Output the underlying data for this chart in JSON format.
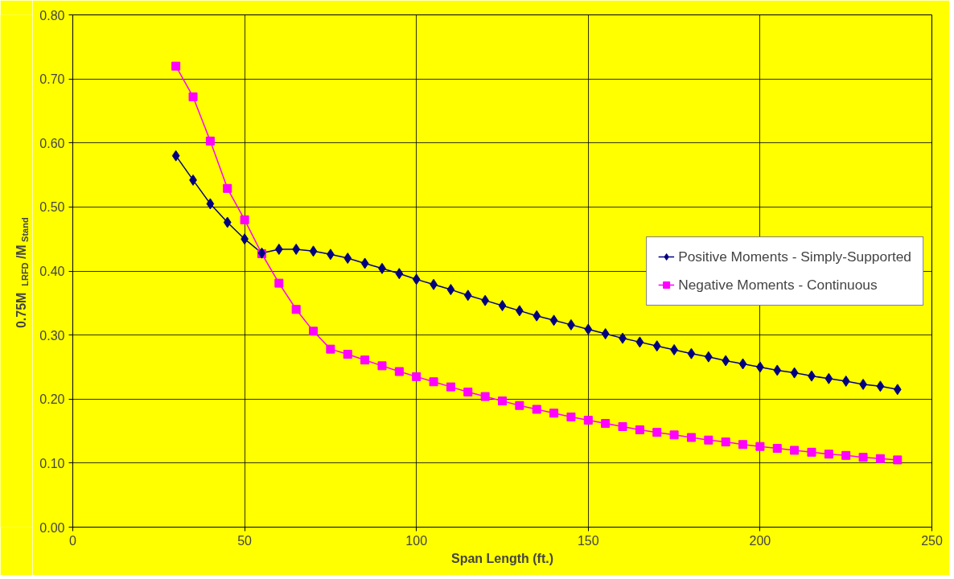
{
  "chart_data": {
    "type": "line",
    "xlabel": "Span Length (ft.)",
    "ylabel": "0.75M$_{LRFD}$/M$_{Stand}$",
    "x": [
      30,
      35,
      40,
      45,
      50,
      55,
      60,
      65,
      70,
      75,
      80,
      85,
      90,
      95,
      100,
      105,
      110,
      115,
      120,
      125,
      130,
      135,
      140,
      145,
      150,
      155,
      160,
      165,
      170,
      175,
      180,
      185,
      190,
      195,
      200,
      205,
      210,
      215,
      220,
      225,
      230,
      235,
      240
    ],
    "series": [
      {
        "name": "Positive Moments - Simply-Supported",
        "color": "#000080",
        "marker": "diamond",
        "values": [
          0.58,
          0.542,
          0.505,
          0.476,
          0.45,
          0.428,
          0.434,
          0.434,
          0.431,
          0.426,
          0.42,
          0.412,
          0.404,
          0.396,
          0.387,
          0.379,
          0.371,
          0.362,
          0.354,
          0.346,
          0.338,
          0.33,
          0.323,
          0.316,
          0.309,
          0.302,
          0.295,
          0.289,
          0.283,
          0.277,
          0.271,
          0.266,
          0.26,
          0.255,
          0.25,
          0.245,
          0.241,
          0.236,
          0.232,
          0.228,
          0.223,
          0.22,
          0.215
        ]
      },
      {
        "name": "Negative Moments - Continuous",
        "color": "#ff00ff",
        "marker": "square",
        "values": [
          0.72,
          0.672,
          0.603,
          0.529,
          0.48,
          0.427,
          0.381,
          0.34,
          0.306,
          0.278,
          0.27,
          0.261,
          0.252,
          0.243,
          0.235,
          0.227,
          0.219,
          0.211,
          0.204,
          0.197,
          0.19,
          0.184,
          0.178,
          0.172,
          0.167,
          0.162,
          0.157,
          0.152,
          0.148,
          0.144,
          0.14,
          0.136,
          0.133,
          0.129,
          0.126,
          0.123,
          0.12,
          0.117,
          0.114,
          0.112,
          0.109,
          0.107,
          0.105
        ]
      }
    ],
    "xlim": [
      0,
      250
    ],
    "xticks": [
      0,
      50,
      100,
      150,
      200,
      250
    ],
    "ylim": [
      0,
      0.8
    ],
    "yticks": [
      {
        "value": 0,
        "label": "0.00"
      },
      {
        "value": 0.1,
        "label": "0.10"
      },
      {
        "value": 0.2,
        "label": "0.20"
      },
      {
        "value": 0.3,
        "label": "0.30"
      },
      {
        "value": 0.4,
        "label": "0.40"
      },
      {
        "value": 0.5,
        "label": "0.50"
      },
      {
        "value": 0.6,
        "label": "0.60"
      },
      {
        "value": 0.7,
        "label": "0.70"
      },
      {
        "value": 0.8,
        "label": "0.80"
      }
    ],
    "grid": true,
    "legend": "right",
    "line_style": "solid"
  }
}
